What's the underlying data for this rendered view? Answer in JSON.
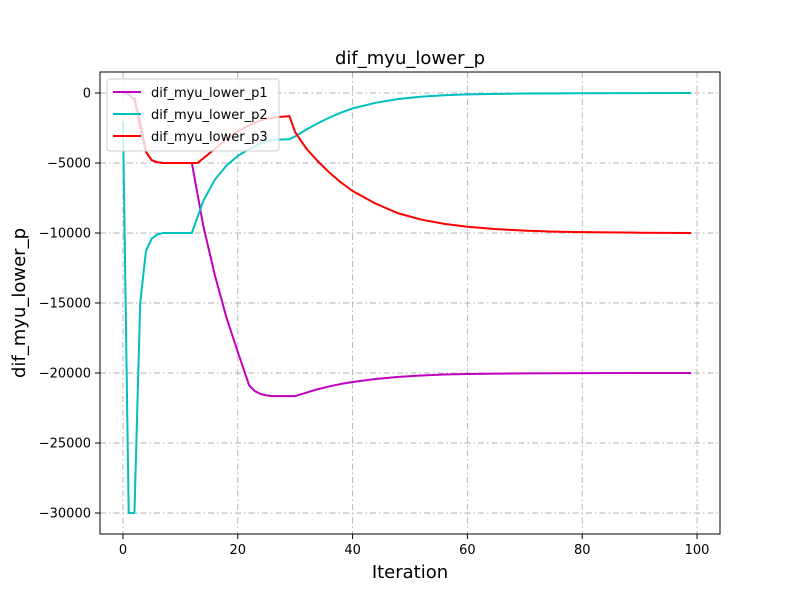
{
  "chart_data": {
    "type": "line",
    "title": "dif_myu_lower_p",
    "xlabel": "Iteration",
    "ylabel": "dif_myu_lower_p",
    "xlim": [
      -4,
      104
    ],
    "ylim": [
      -31500,
      1500
    ],
    "xticks": [
      0,
      20,
      40,
      60,
      80,
      100
    ],
    "yticks": [
      0,
      -5000,
      -10000,
      -15000,
      -20000,
      -25000,
      -30000
    ],
    "xtick_labels": [
      "0",
      "20",
      "40",
      "60",
      "80",
      "100"
    ],
    "ytick_labels": [
      "0",
      "−5000",
      "−10000",
      "−15000",
      "−20000",
      "−25000",
      "−30000"
    ],
    "grid": true,
    "grid_style": "dash-dot",
    "legend_position": "upper-left",
    "series": [
      {
        "name": "dif_myu_lower_p1",
        "color": "#bf00bf",
        "points": [
          [
            0,
            0
          ],
          [
            1,
            -100
          ],
          [
            2,
            -500
          ],
          [
            3,
            -2000
          ],
          [
            4,
            -4200
          ],
          [
            5,
            -4800
          ],
          [
            6,
            -4950
          ],
          [
            7,
            -5000
          ],
          [
            12,
            -5000
          ],
          [
            14,
            -9500
          ],
          [
            16,
            -13000
          ],
          [
            18,
            -16000
          ],
          [
            20,
            -18500
          ],
          [
            22,
            -20900
          ],
          [
            23,
            -21300
          ],
          [
            24,
            -21500
          ],
          [
            25,
            -21600
          ],
          [
            26,
            -21650
          ],
          [
            30,
            -21650
          ],
          [
            32,
            -21400
          ],
          [
            34,
            -21150
          ],
          [
            36,
            -20950
          ],
          [
            38,
            -20780
          ],
          [
            40,
            -20640
          ],
          [
            44,
            -20430
          ],
          [
            48,
            -20280
          ],
          [
            52,
            -20180
          ],
          [
            56,
            -20110
          ],
          [
            60,
            -20070
          ],
          [
            70,
            -20025
          ],
          [
            80,
            -20008
          ],
          [
            90,
            -20003
          ],
          [
            99,
            -20000
          ]
        ]
      },
      {
        "name": "dif_myu_lower_p2",
        "color": "#00bfbf",
        "points": [
          [
            0,
            -2000
          ],
          [
            1,
            -30000
          ],
          [
            2,
            -30000
          ],
          [
            3,
            -15000
          ],
          [
            4,
            -11300
          ],
          [
            5,
            -10400
          ],
          [
            6,
            -10100
          ],
          [
            7,
            -10000
          ],
          [
            12,
            -10000
          ],
          [
            14,
            -7700
          ],
          [
            16,
            -6200
          ],
          [
            18,
            -5200
          ],
          [
            20,
            -4500
          ],
          [
            22,
            -4000
          ],
          [
            24,
            -3600
          ],
          [
            26,
            -3350
          ],
          [
            29,
            -3300
          ],
          [
            30,
            -3100
          ],
          [
            32,
            -2600
          ],
          [
            34,
            -2150
          ],
          [
            36,
            -1750
          ],
          [
            38,
            -1400
          ],
          [
            40,
            -1100
          ],
          [
            44,
            -700
          ],
          [
            48,
            -430
          ],
          [
            52,
            -260
          ],
          [
            56,
            -160
          ],
          [
            60,
            -100
          ],
          [
            70,
            -40
          ],
          [
            80,
            -15
          ],
          [
            90,
            -5
          ],
          [
            99,
            0
          ]
        ]
      },
      {
        "name": "dif_myu_lower_p3",
        "color": "#ff0000",
        "points": [
          [
            2,
            -300
          ],
          [
            3,
            -2500
          ],
          [
            4,
            -4200
          ],
          [
            5,
            -4800
          ],
          [
            6,
            -4950
          ],
          [
            7,
            -5000
          ],
          [
            13,
            -5000
          ],
          [
            16,
            -4000
          ],
          [
            18,
            -3300
          ],
          [
            20,
            -2750
          ],
          [
            22,
            -2300
          ],
          [
            24,
            -1950
          ],
          [
            26,
            -1750
          ],
          [
            29,
            -1650
          ],
          [
            30,
            -2800
          ],
          [
            32,
            -4000
          ],
          [
            34,
            -4900
          ],
          [
            36,
            -5700
          ],
          [
            38,
            -6400
          ],
          [
            40,
            -7000
          ],
          [
            44,
            -7900
          ],
          [
            48,
            -8600
          ],
          [
            52,
            -9050
          ],
          [
            56,
            -9350
          ],
          [
            60,
            -9550
          ],
          [
            65,
            -9720
          ],
          [
            70,
            -9830
          ],
          [
            75,
            -9900
          ],
          [
            80,
            -9940
          ],
          [
            90,
            -9980
          ],
          [
            99,
            -10000
          ]
        ]
      }
    ]
  }
}
